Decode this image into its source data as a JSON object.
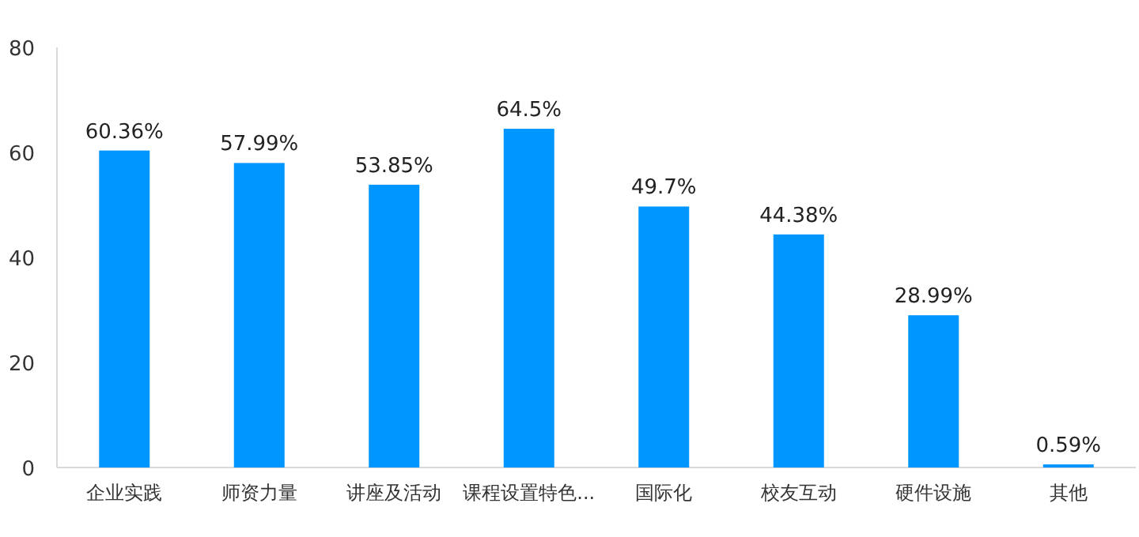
{
  "chart_data": {
    "type": "bar",
    "categories": [
      "企业实践",
      "师资力量",
      "讲座及活动",
      "课程设置特色...",
      "国际化",
      "校友互动",
      "硬件设施",
      "其他"
    ],
    "values": [
      60.36,
      57.99,
      53.85,
      64.5,
      49.7,
      44.38,
      28.99,
      0.59
    ],
    "value_labels": [
      "60.36%",
      "57.99%",
      "53.85%",
      "64.5%",
      "49.7%",
      "44.38%",
      "28.99%",
      "0.59%"
    ],
    "color": "#0096ff",
    "ylim": [
      0,
      80
    ],
    "yticks": [
      0,
      20,
      40,
      60,
      80
    ],
    "grid": false
  }
}
